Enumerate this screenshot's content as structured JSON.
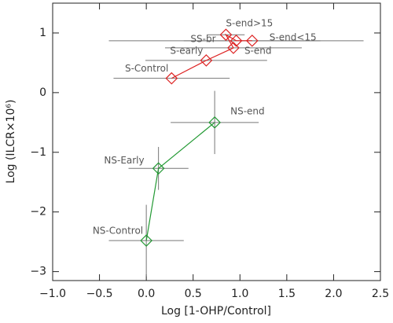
{
  "chart_data": {
    "type": "scatter",
    "x_label": "Log [1-OHP/Control]",
    "y_label": "Log (ILCR×10⁶)",
    "xlim": [
      -1.0,
      2.5
    ],
    "ylim": [
      -3.15,
      1.5
    ],
    "xticks": [
      {
        "value": -1,
        "label": "−1.0"
      },
      {
        "value": -0.5,
        "label": "−0.5"
      },
      {
        "value": 0,
        "label": "0.0"
      },
      0.5,
      {
        "value": 1,
        "label": "1.0"
      },
      1.5,
      {
        "value": 2,
        "label": "2.0"
      },
      2.5
    ],
    "yticks": [
      {
        "value": -3,
        "label": "−3"
      },
      {
        "value": -2,
        "label": "−2"
      },
      {
        "value": -1,
        "label": "−1"
      },
      0,
      1
    ],
    "series": [
      {
        "name": "S",
        "color": "#dd2222",
        "labels": [
          "S-Control",
          "S-early",
          "S-end",
          "S-end>15",
          "SS-br",
          "S-end<15"
        ],
        "x": [
          0.27,
          0.64,
          0.93,
          0.85,
          0.96,
          1.13
        ],
        "values": [
          0.24,
          0.54,
          0.75,
          0.97,
          0.87,
          0.87
        ],
        "xerr": [
          0.62,
          0.65,
          0.73,
          0.2,
          1.36,
          0.73
        ]
      },
      {
        "name": "NS",
        "color": "#229933",
        "labels": [
          "NS-Control",
          "NS-Early",
          "NS-end"
        ],
        "x": [
          0,
          0.13,
          0.73
        ],
        "values": [
          -2.48,
          -1.27,
          -0.5
        ],
        "xerr": [
          0.4,
          0.32,
          0.47
        ],
        "yerr": [
          0.6,
          0.36,
          0.53
        ]
      }
    ]
  }
}
